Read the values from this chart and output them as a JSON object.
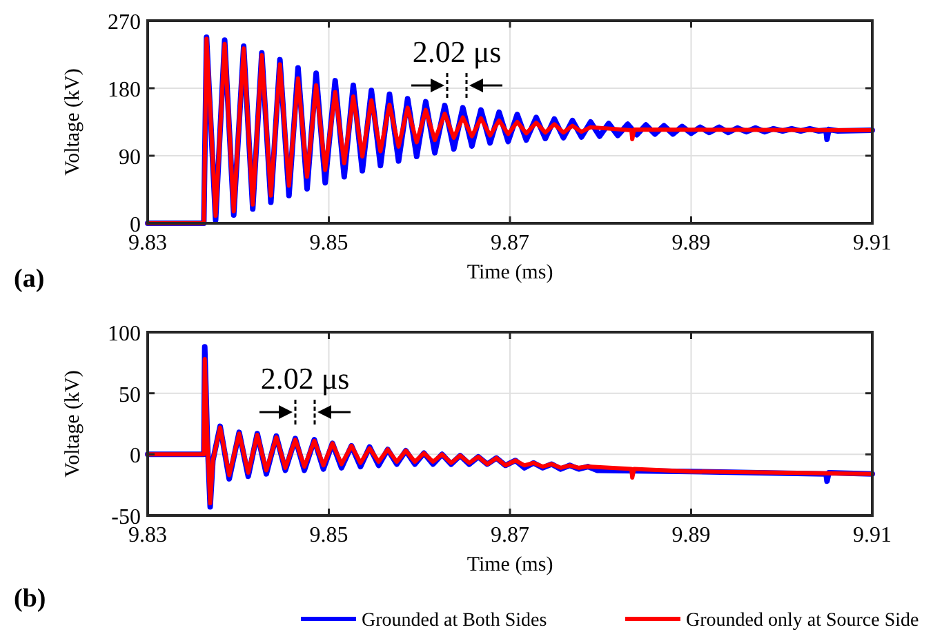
{
  "chart_data": [
    {
      "type": "line",
      "xlabel": "Time (ms)",
      "ylabel": "Voltage (kV)",
      "xlim": [
        9.83,
        9.91
      ],
      "xticks": [
        9.83,
        9.85,
        9.87,
        9.89,
        9.91
      ],
      "ylim": [
        0,
        270
      ],
      "yticks": [
        0,
        90,
        180,
        270
      ],
      "grid": true,
      "line_style": "solid",
      "annotations": [
        "(a)",
        "2.02 μs"
      ],
      "series": [
        {
          "color": "#0000ff",
          "x": [
            9.83,
            9.8362,
            9.8365,
            9.8375,
            9.8385,
            9.8395,
            9.8406,
            9.8416,
            9.8426,
            9.8436,
            9.8446,
            9.8456,
            9.8466,
            9.8476,
            9.8486,
            9.8496,
            9.8507,
            9.8517,
            9.8527,
            9.8537,
            9.8547,
            9.8557,
            9.8567,
            9.8577,
            9.8587,
            9.8597,
            9.8607,
            9.8617,
            9.8628,
            9.8638,
            9.8648,
            9.8658,
            9.8668,
            9.8678,
            9.8688,
            9.8698,
            9.8708,
            9.8718,
            9.8729,
            9.8739,
            9.8749,
            9.8759,
            9.8769,
            9.8779,
            9.8789,
            9.8799,
            9.8809,
            9.8819,
            9.883,
            9.884,
            9.885,
            9.886,
            9.887,
            9.888,
            9.889,
            9.89,
            9.891,
            9.892,
            9.8931,
            9.8941,
            9.8951,
            9.8961,
            9.8971,
            9.8981,
            9.8991,
            9.9001,
            9.9011,
            9.9021,
            9.9031,
            9.9041,
            9.9049,
            9.905,
            9.9052,
            9.9062,
            9.91
          ],
          "values": [
            0,
            0,
            248,
            4,
            244,
            11,
            236,
            19,
            227,
            28,
            218,
            37,
            207,
            46,
            200,
            54,
            190,
            62,
            184,
            70,
            177,
            77,
            172,
            83,
            166,
            89,
            162,
            94,
            157,
            99,
            154,
            103,
            151,
            107,
            148,
            109,
            145,
            111,
            141,
            113,
            139,
            114,
            137,
            115,
            135,
            116,
            133,
            117,
            132,
            118,
            131,
            119,
            130,
            119,
            129,
            120,
            128,
            121,
            128,
            121,
            127,
            122,
            127,
            122,
            126,
            123,
            126,
            123,
            126,
            123,
            124,
            112,
            125,
            123,
            124
          ]
        },
        {
          "color": "#ff0000",
          "x": [
            9.83,
            9.8362,
            9.8365,
            9.8375,
            9.8385,
            9.8395,
            9.8406,
            9.8416,
            9.8426,
            9.8436,
            9.8446,
            9.8456,
            9.8466,
            9.8476,
            9.8486,
            9.8496,
            9.8507,
            9.8517,
            9.8527,
            9.8537,
            9.8547,
            9.8557,
            9.8567,
            9.8577,
            9.8587,
            9.8597,
            9.8607,
            9.8617,
            9.8628,
            9.8638,
            9.8648,
            9.8658,
            9.8668,
            9.8678,
            9.8688,
            9.8698,
            9.8708,
            9.8718,
            9.8729,
            9.8739,
            9.8749,
            9.8759,
            9.8769,
            9.8779,
            9.8789,
            9.8834,
            9.8835,
            9.8837,
            9.91
          ],
          "values": [
            0,
            0,
            246,
            10,
            239,
            16,
            233,
            25,
            224,
            37,
            212,
            50,
            193,
            62,
            184,
            71,
            175,
            80,
            169,
            89,
            164,
            96,
            158,
            102,
            154,
            108,
            151,
            111,
            146,
            114,
            141,
            116,
            140,
            117,
            137,
            119,
            135,
            120,
            134,
            121,
            132,
            121,
            130,
            122,
            128,
            124,
            112,
            125,
            124
          ]
        }
      ]
    },
    {
      "type": "line",
      "xlabel": "Time (ms)",
      "ylabel": "Voltage (kV)",
      "xlim": [
        9.83,
        9.91
      ],
      "xticks": [
        9.83,
        9.85,
        9.87,
        9.89,
        9.91
      ],
      "ylim": [
        -50,
        100
      ],
      "yticks": [
        -50,
        0,
        50,
        100
      ],
      "grid": true,
      "line_style": "solid",
      "legend": "bottom",
      "annotations": [
        "(b)",
        "2.02 μs"
      ],
      "series": [
        {
          "name": "Grounded at Both Sides",
          "color": "#0000ff",
          "x": [
            9.83,
            9.8362,
            9.8363,
            9.8366,
            9.8369,
            9.8372,
            9.838,
            9.839,
            9.8401,
            9.8411,
            9.8421,
            9.8431,
            9.8442,
            9.8452,
            9.8463,
            9.8473,
            9.8484,
            9.8494,
            9.8504,
            9.8514,
            9.8525,
            9.8535,
            9.8545,
            9.8555,
            9.8565,
            9.8575,
            9.8585,
            9.8595,
            9.8605,
            9.8615,
            9.8625,
            9.8635,
            9.8645,
            9.8655,
            9.8665,
            9.8675,
            9.8685,
            9.8695,
            9.8706,
            9.8716,
            9.8726,
            9.8736,
            9.8746,
            9.8756,
            9.8766,
            9.8776,
            9.8786,
            9.8796,
            9.89,
            9.9049,
            9.905,
            9.9052,
            9.91
          ],
          "values": [
            0,
            0,
            88,
            10,
            -43,
            -5,
            23,
            -20,
            18,
            -18,
            17,
            -16,
            15,
            -13,
            13,
            -13,
            12,
            -12,
            9,
            -11,
            7,
            -10,
            6,
            -9,
            4,
            -8,
            3,
            -8,
            1,
            -8,
            0,
            -8,
            -1,
            -8,
            -2,
            -8,
            -3,
            -9,
            -5,
            -11,
            -7,
            -11,
            -8,
            -12,
            -9,
            -12,
            -10,
            -13,
            -14,
            -16,
            -22,
            -15,
            -16
          ]
        },
        {
          "name": "Grounded only at Source Side",
          "color": "#ff0000",
          "x": [
            9.83,
            9.8362,
            9.8363,
            9.8366,
            9.8369,
            9.8372,
            9.838,
            9.839,
            9.8401,
            9.8411,
            9.8421,
            9.8431,
            9.8442,
            9.8452,
            9.8463,
            9.8473,
            9.8484,
            9.8494,
            9.8504,
            9.8514,
            9.8525,
            9.8535,
            9.8545,
            9.8555,
            9.8565,
            9.8575,
            9.8585,
            9.8595,
            9.8605,
            9.8615,
            9.8625,
            9.8635,
            9.8645,
            9.8655,
            9.8665,
            9.8675,
            9.8685,
            9.8695,
            9.8706,
            9.8716,
            9.8726,
            9.8736,
            9.8746,
            9.8756,
            9.8766,
            9.8776,
            9.8786,
            9.8834,
            9.8835,
            9.8837,
            9.89,
            9.91
          ],
          "values": [
            0,
            0,
            78,
            10,
            -40,
            -5,
            22,
            -17,
            17,
            -15,
            16,
            -13,
            14,
            -11,
            12,
            -10,
            11,
            -9,
            9,
            -8,
            7,
            -7,
            5,
            -6,
            4,
            -6,
            3,
            -6,
            1,
            -6,
            0,
            -7,
            -1,
            -7,
            -2,
            -8,
            -3,
            -9,
            -5,
            -9,
            -7,
            -10,
            -8,
            -11,
            -9,
            -11,
            -10,
            -12,
            -19,
            -12,
            -14,
            -16
          ]
        }
      ]
    }
  ]
}
